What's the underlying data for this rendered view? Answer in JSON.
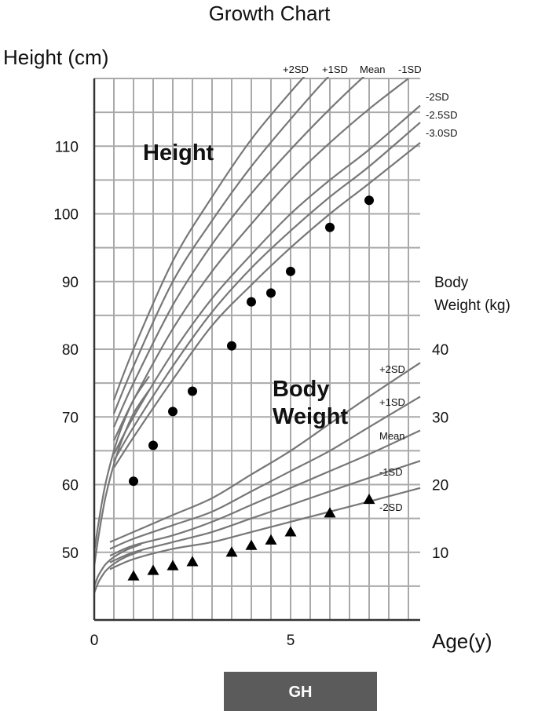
{
  "chart_data": {
    "type": "scatter",
    "title": "Growth Chart",
    "left_axis_label": "Height (cm)",
    "right_axis_label_line1": "Body",
    "right_axis_label_line2": "Weight (kg)",
    "x_axis_label": "Age(y)",
    "x_ticks": [
      "0",
      "5"
    ],
    "y_left_ticks": [
      "50",
      "60",
      "70",
      "80",
      "90",
      "100",
      "110"
    ],
    "y_right_ticks": [
      "10",
      "20",
      "30",
      "40"
    ],
    "xlim": [
      0,
      8.3
    ],
    "height_ylim": [
      40,
      120
    ],
    "weight_ylim": [
      0,
      80
    ],
    "grid": true,
    "height_section_label": "Height",
    "weight_section_label_line1": "Body",
    "weight_section_label_line2": "Weight",
    "height_sd_labels_top": [
      "+2SD",
      "+1SD",
      "Mean",
      "-1SD"
    ],
    "height_sd_labels_right": [
      "-2SD",
      "-2.5SD",
      "-3.0SD"
    ],
    "weight_sd_labels": [
      "+2SD",
      "+1SD",
      "Mean",
      "-1SD",
      "-2SD"
    ],
    "height_curves": [
      {
        "sd": "+2SD",
        "x": [
          0.5,
          1,
          2,
          3,
          4,
          5,
          6
        ],
        "y": [
          72.5,
          80,
          93,
          102.5,
          111,
          118,
          124.5
        ]
      },
      {
        "sd": "+1SD",
        "x": [
          0.5,
          1,
          2,
          3,
          4,
          5,
          6,
          7
        ],
        "y": [
          70.5,
          77.5,
          90,
          99,
          107,
          114,
          120.5,
          126
        ]
      },
      {
        "sd": "Mean",
        "x": [
          0.5,
          1,
          2,
          3,
          4,
          5,
          6,
          7,
          8
        ],
        "y": [
          68.5,
          75,
          86.5,
          95.5,
          103,
          109.5,
          115.5,
          121,
          126
        ]
      },
      {
        "sd": "-1SD",
        "x": [
          0.5,
          1,
          2,
          3,
          4,
          5,
          6,
          7,
          8
        ],
        "y": [
          66.5,
          72.5,
          83,
          91.5,
          98.5,
          105,
          110.5,
          115.5,
          120
        ]
      },
      {
        "sd": "-2SD",
        "x": [
          0.5,
          1,
          2,
          3,
          4,
          5,
          6,
          7,
          8.3
        ],
        "y": [
          64.5,
          70,
          79.5,
          87.5,
          94,
          100,
          105,
          109.5,
          116
        ]
      },
      {
        "sd": "-2.5SD",
        "x": [
          0.5,
          1,
          2,
          3,
          4,
          5,
          6,
          7,
          8.3
        ],
        "y": [
          63.5,
          68.5,
          77.5,
          85.5,
          92,
          97.5,
          102.5,
          107,
          113.5
        ]
      },
      {
        "sd": "-3.0SD",
        "x": [
          0.5,
          1,
          2,
          3,
          4,
          5,
          6,
          7,
          8.3
        ],
        "y": [
          62.5,
          67,
          75.5,
          83.5,
          89.5,
          95,
          100,
          104.5,
          110.5
        ]
      }
    ],
    "height_infant_curves": [
      {
        "x": [
          0,
          0.1,
          0.2,
          0.3,
          0.5,
          0.7,
          1,
          1.4
        ],
        "y": [
          50,
          54,
          57.5,
          60.5,
          65,
          68.5,
          72.5,
          76
        ]
      },
      {
        "x": [
          0,
          0.1,
          0.2,
          0.3,
          0.5,
          0.7,
          1,
          1.4
        ],
        "y": [
          48,
          52,
          55.5,
          58.5,
          63,
          66.5,
          70.5,
          74
        ]
      }
    ],
    "weight_curves": [
      {
        "sd": "+2SD",
        "x": [
          0.4,
          1,
          2,
          3,
          4,
          5,
          6,
          7,
          8.3
        ],
        "y": [
          11.5,
          13,
          15.5,
          18,
          21.5,
          25,
          29,
          33,
          38
        ]
      },
      {
        "sd": "+1SD",
        "x": [
          0.4,
          1,
          2,
          3,
          4,
          5,
          6,
          7,
          8.3
        ],
        "y": [
          10.5,
          12,
          14,
          16,
          19,
          22,
          25,
          28.5,
          33
        ]
      },
      {
        "sd": "Mean",
        "x": [
          0.4,
          1,
          2,
          3,
          4,
          5,
          6,
          7,
          8.3
        ],
        "y": [
          9.5,
          11,
          12.5,
          14.5,
          17,
          19.5,
          22,
          24.5,
          28
        ]
      },
      {
        "sd": "-1SD",
        "x": [
          0.4,
          1,
          2,
          3,
          4,
          5,
          6,
          7,
          8.3
        ],
        "y": [
          8.5,
          10,
          11.5,
          13,
          15,
          17,
          19,
          21,
          23.5
        ]
      },
      {
        "sd": "-2SD",
        "x": [
          0.4,
          1,
          2,
          3,
          4,
          5,
          6,
          7,
          8.3
        ],
        "y": [
          7.5,
          9,
          10.5,
          11.5,
          13,
          14.5,
          16,
          17.5,
          19.5
        ]
      }
    ],
    "weight_infant_curves": [
      {
        "x": [
          0,
          0.1,
          0.2,
          0.3,
          0.5,
          0.8,
          1.2
        ],
        "y": [
          5,
          6.5,
          7.5,
          8.3,
          9.3,
          10.3,
          11.2
        ]
      },
      {
        "x": [
          0,
          0.1,
          0.2,
          0.3,
          0.5,
          0.8,
          1.2
        ],
        "y": [
          4,
          5.5,
          6.5,
          7.3,
          8.3,
          9.3,
          10.2
        ]
      }
    ],
    "height_points": {
      "x": [
        1,
        1.5,
        2,
        2.5,
        3.5,
        4,
        4.5,
        5,
        6,
        7
      ],
      "y": [
        60.5,
        65.8,
        70.8,
        73.8,
        80.5,
        87,
        88.3,
        91.5,
        98,
        102
      ]
    },
    "weight_points": {
      "x": [
        1,
        1.5,
        2,
        2.5,
        3.5,
        4,
        4.5,
        5,
        6,
        7
      ],
      "y": [
        6.5,
        7.3,
        8,
        8.6,
        10,
        11,
        11.8,
        13,
        15.8,
        17.8
      ]
    }
  },
  "footer": {
    "group_label": "GH",
    "colors": {
      "group_box": "#5b5b5b",
      "curve": "#777777",
      "grid": "#aaaaaa"
    }
  }
}
